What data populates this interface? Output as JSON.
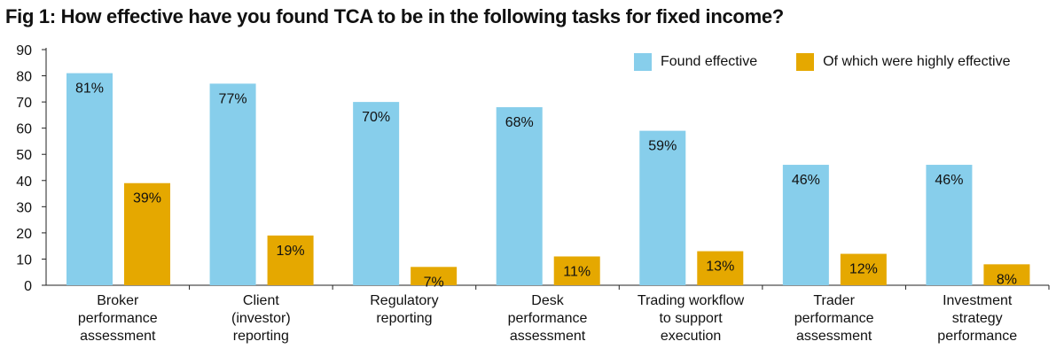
{
  "title": "Fig 1: How effective have you found TCA to be in the following tasks for fixed income?",
  "legend": {
    "position": "top-right",
    "items": [
      {
        "label": "Found effective",
        "color": "#87CEEB"
      },
      {
        "label": "Of which were highly effective",
        "color": "#E5A800"
      }
    ]
  },
  "chart_data": {
    "type": "bar",
    "title": "Fig 1: How effective have you found TCA to be in the following tasks for fixed income?",
    "categories": [
      [
        "Broker",
        "performance",
        "assessment"
      ],
      [
        "Client",
        "(investor)",
        "reporting"
      ],
      [
        "Regulatory",
        "reporting"
      ],
      [
        "Desk",
        "performance",
        "assessment"
      ],
      [
        "Trading workflow",
        "to support",
        "execution"
      ],
      [
        "Trader",
        "performance",
        "assessment"
      ],
      [
        "Investment",
        "strategy",
        "performance"
      ]
    ],
    "series": [
      {
        "name": "Found effective",
        "color": "#87CEEB",
        "values": [
          81,
          77,
          70,
          68,
          59,
          46,
          46
        ],
        "labels": [
          "81%",
          "77%",
          "70%",
          "68%",
          "59%",
          "46%",
          "46%"
        ]
      },
      {
        "name": "Of which were highly effective",
        "color": "#E5A800",
        "values": [
          39,
          19,
          7,
          11,
          13,
          12,
          8
        ],
        "labels": [
          "39%",
          "19%",
          "7%",
          "11%",
          "13%",
          "12%",
          "8%"
        ]
      }
    ],
    "ylim": [
      0,
      90
    ],
    "yticks": [
      0,
      10,
      20,
      30,
      40,
      50,
      60,
      70,
      80,
      90
    ],
    "grid": false,
    "xlabel": "",
    "ylabel": ""
  }
}
